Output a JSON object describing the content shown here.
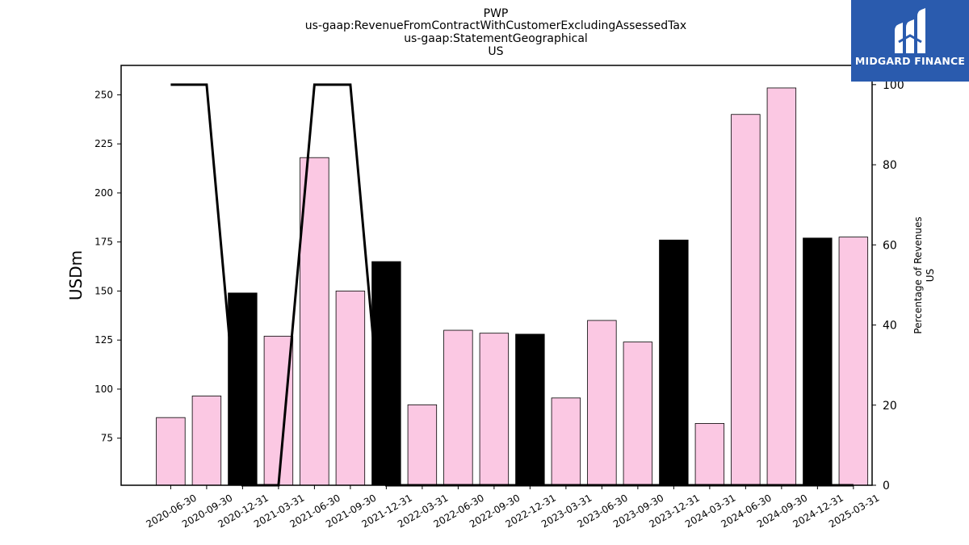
{
  "chart_data": {
    "type": "bar",
    "title_lines": [
      "PWP",
      "us-gaap:RevenueFromContractWithCustomerExcludingAssessedTax",
      "us-gaap:StatementGeographical",
      "US"
    ],
    "ylabel": "USDm",
    "ylabel_right_lines": [
      "Percentage of Revenues",
      "US"
    ],
    "categories": [
      "2020-06-30",
      "2020-09-30",
      "2020-12-31",
      "2021-03-31",
      "2021-06-30",
      "2021-09-30",
      "2021-12-31",
      "2022-03-31",
      "2022-06-30",
      "2022-09-30",
      "2022-12-31",
      "2023-03-31",
      "2023-06-30",
      "2023-09-30",
      "2023-12-31",
      "2024-03-31",
      "2024-06-30",
      "2024-09-30",
      "2024-12-31",
      "2025-03-31"
    ],
    "values": [
      85.5,
      96.5,
      149,
      127,
      218,
      150,
      165,
      92,
      130,
      128.5,
      128,
      95.5,
      135,
      124,
      176,
      82.5,
      240,
      253.5,
      177,
      177.5
    ],
    "bar_colors": [
      "#fbc8e3",
      "#fbc8e3",
      "#000000",
      "#fbc8e3",
      "#fbc8e3",
      "#fbc8e3",
      "#000000",
      "#fbc8e3",
      "#fbc8e3",
      "#fbc8e3",
      "#000000",
      "#fbc8e3",
      "#fbc8e3",
      "#fbc8e3",
      "#000000",
      "#fbc8e3",
      "#fbc8e3",
      "#fbc8e3",
      "#000000",
      "#fbc8e3"
    ],
    "ylim": [
      51,
      265
    ],
    "yticks": [
      75,
      100,
      125,
      150,
      175,
      200,
      225,
      250
    ],
    "percentage_line": {
      "values": [
        100,
        100,
        0,
        0,
        100,
        100,
        0,
        0,
        0,
        0,
        0,
        0,
        0,
        0,
        0,
        0,
        0,
        0,
        0,
        0
      ],
      "ylim": [
        0,
        104.8
      ],
      "yticks": [
        0,
        20,
        40,
        60,
        80,
        100
      ],
      "color": "#000000"
    },
    "grid": false
  },
  "logo": {
    "text": "MIDGARD FINANCE",
    "background": "#2a5bae"
  }
}
